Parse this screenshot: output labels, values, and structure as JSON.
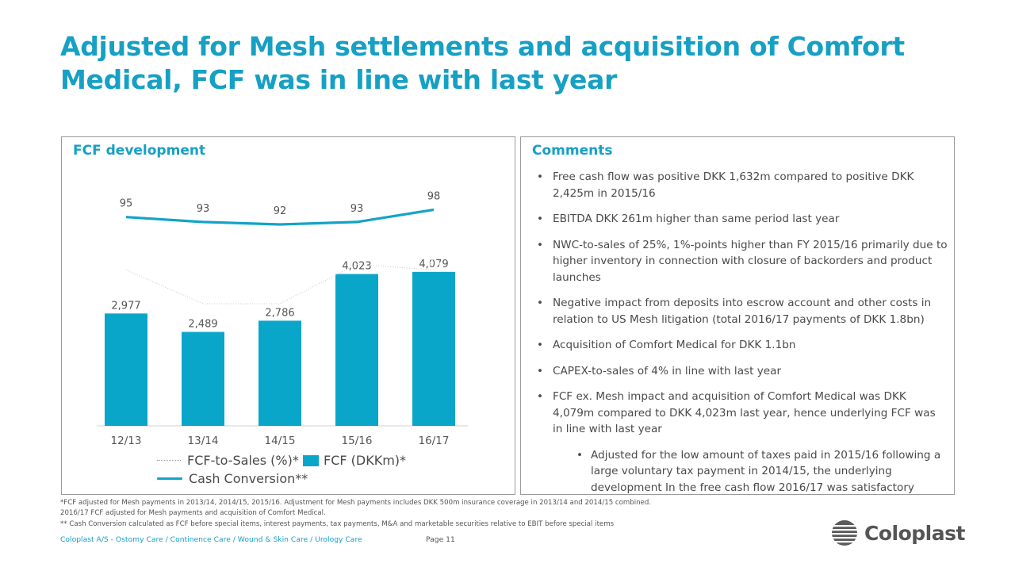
{
  "title": "Adjusted for Mesh settlements and acquisition of Comfort Medical, FCF was in line with last year",
  "left_panel": {
    "title": "FCF development"
  },
  "right_panel": {
    "title": "Comments"
  },
  "colors": {
    "accent": "#16a0c4",
    "bar": "#0aa6c9",
    "line": "#13a3c8",
    "dotted": "#b0b0b0"
  },
  "chart_data": {
    "type": "bar",
    "categories": [
      "12/13",
      "13/14",
      "14/15",
      "15/16",
      "16/17"
    ],
    "series": [
      {
        "name": "FCF (DKKm)*",
        "type": "bar",
        "values": [
          2977,
          2489,
          2786,
          4023,
          4079
        ],
        "labels": [
          "2,977",
          "2,489",
          "2,786",
          "4,023",
          "4,079"
        ]
      },
      {
        "name": "FCF-to-Sales (%)*",
        "type": "line",
        "style": "dotted",
        "values": [
          26,
          20,
          20,
          27,
          26
        ]
      },
      {
        "name": "Cash Conversion**",
        "type": "line",
        "style": "solid",
        "values": [
          95,
          93,
          92,
          93,
          98
        ]
      }
    ],
    "legend": [
      {
        "label": "FCF-to-Sales (%)*",
        "marker": "dotted-line"
      },
      {
        "label": "FCF (DKKm)*",
        "marker": "box"
      },
      {
        "label": "Cash Conversion**",
        "marker": "line"
      }
    ],
    "legend_position": "bottom",
    "grid": false
  },
  "comments": [
    "Free cash flow was positive DKK 1,632m compared to positive DKK 2,425m in 2015/16",
    "EBITDA DKK 261m higher than same period last year",
    "NWC-to-sales of 25%, 1%-points higher than FY 2015/16 primarily due to higher inventory in connection with closure of backorders and product launches",
    "Negative impact from deposits into escrow account and other costs in relation to US Mesh litigation (total 2016/17 payments of DKK 1.8bn)",
    "Acquisition of Comfort Medical for DKK 1.1bn",
    "CAPEX-to-sales of 4% in line with last year",
    "FCF ex. Mesh impact and acquisition of Comfort Medical was DKK 4,079m compared to DKK 4,023m last year, hence underlying FCF was in line with last year"
  ],
  "sub_comment": "Adjusted for the low amount of taxes paid in 2015/16 following a large voluntary tax payment in 2014/15, the underlying development In the free cash flow 2016/17 was satisfactory",
  "bullet": "•",
  "footnotes": [
    "*FCF adjusted for Mesh payments in 2013/14, 2014/15, 2015/16. Adjustment for Mesh payments includes DKK 500m insurance coverage in 2013/14 and 2014/15 combined.",
    "2016/17 FCF adjusted for Mesh payments and acquisition of Comfort Medical.",
    "** Cash Conversion calculated as FCF before special items, interest payments, tax payments, M&A and marketable securities relative to EBIT before special items"
  ],
  "footer": "Coloplast A/S - Ostomy Care / Continence Care / Wound & Skin Care / Urology Care",
  "page": "Page 11",
  "logo_text": "Coloplast"
}
